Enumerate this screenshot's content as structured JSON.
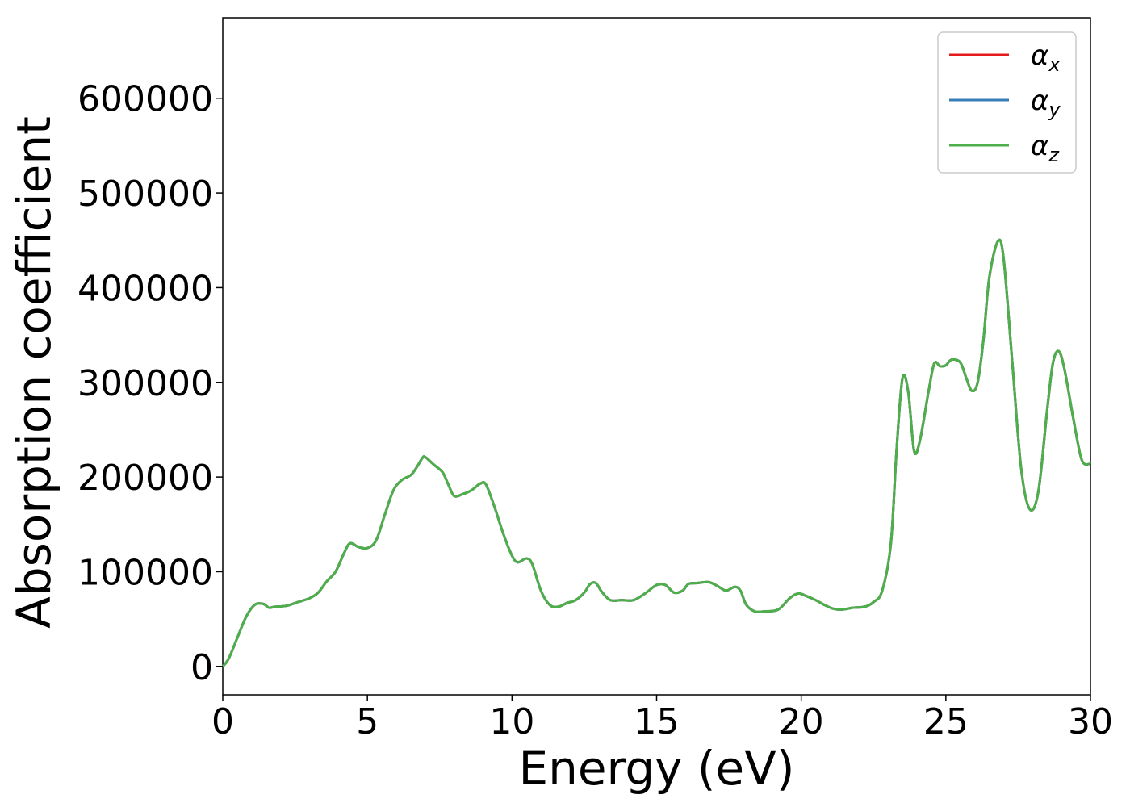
{
  "chart_data": {
    "type": "line",
    "title": "",
    "xlabel": "Energy (eV)",
    "ylabel": "Absorption coefficient",
    "xlim": [
      0,
      30
    ],
    "ylim": [
      -30000,
      685000
    ],
    "xticks": [
      0,
      5,
      10,
      15,
      20,
      25,
      30
    ],
    "xtick_labels": [
      "0",
      "5",
      "10",
      "15",
      "20",
      "25",
      "30"
    ],
    "yticks": [
      0,
      100000,
      200000,
      300000,
      400000,
      500000,
      600000
    ],
    "ytick_labels": [
      "0",
      "100000",
      "200000",
      "300000",
      "400000",
      "500000",
      "600000"
    ],
    "grid": false,
    "legend_position": "top-right",
    "x": [
      0,
      0.2,
      0.5,
      0.8,
      1.1,
      1.4,
      1.6,
      1.8,
      2.2,
      2.6,
      3.0,
      3.3,
      3.6,
      3.9,
      4.2,
      4.4,
      4.7,
      5.0,
      5.3,
      5.6,
      5.9,
      6.2,
      6.5,
      6.7,
      6.9,
      7.0,
      7.3,
      7.6,
      7.8,
      8.0,
      8.3,
      8.6,
      8.9,
      9.1,
      9.4,
      9.7,
      10.0,
      10.2,
      10.5,
      10.7,
      11.0,
      11.3,
      11.6,
      11.9,
      12.2,
      12.5,
      12.7,
      12.9,
      13.1,
      13.4,
      13.8,
      14.2,
      14.6,
      15.0,
      15.3,
      15.6,
      15.9,
      16.1,
      16.4,
      16.8,
      17.1,
      17.4,
      17.7,
      17.9,
      18.1,
      18.4,
      18.7,
      19.2,
      19.6,
      19.9,
      20.2,
      20.5,
      20.8,
      21.1,
      21.4,
      21.8,
      22.2,
      22.5,
      22.8,
      23.1,
      23.3,
      23.5,
      23.7,
      23.9,
      24.1,
      24.4,
      24.6,
      24.8,
      25.0,
      25.2,
      25.5,
      25.7,
      25.9,
      26.1,
      26.3,
      26.5,
      26.8,
      27.0,
      27.3,
      27.6,
      27.9,
      28.2,
      28.5,
      28.7,
      28.9,
      29.1,
      29.4,
      29.7,
      30.0
    ],
    "series": [
      {
        "name": "α_x",
        "label_main": "α",
        "label_sub": "x",
        "color": "#e41a1c",
        "values": [
          0,
          8000,
          30000,
          52000,
          65000,
          66000,
          62000,
          63000,
          64000,
          68000,
          72000,
          78000,
          90000,
          100000,
          120000,
          130000,
          126000,
          125000,
          133000,
          160000,
          186000,
          197000,
          202000,
          210000,
          220000,
          221000,
          213000,
          205000,
          192000,
          180000,
          182000,
          186000,
          193000,
          192000,
          168000,
          140000,
          117000,
          110000,
          114000,
          108000,
          80000,
          65000,
          63000,
          67000,
          70000,
          78000,
          87000,
          88000,
          79000,
          70000,
          70000,
          70000,
          77000,
          86000,
          86000,
          78000,
          80000,
          87000,
          88000,
          89000,
          85000,
          80000,
          84000,
          80000,
          65000,
          58000,
          58000,
          60000,
          72000,
          77000,
          74000,
          70000,
          65000,
          61000,
          60000,
          62000,
          63000,
          68000,
          80000,
          130000,
          230000,
          304000,
          290000,
          228000,
          238000,
          290000,
          320000,
          317000,
          318000,
          324000,
          321000,
          305000,
          291000,
          300000,
          345000,
          410000,
          449000,
          430000,
          320000,
          210000,
          166000,
          185000,
          270000,
          320000,
          333000,
          314000,
          263000,
          218000,
          214000
        ]
      },
      {
        "name": "α_y",
        "label_main": "α",
        "label_sub": "y",
        "color": "#377eb8",
        "values": [
          0,
          8000,
          30000,
          52000,
          65000,
          66000,
          62000,
          63000,
          64000,
          68000,
          72000,
          78000,
          90000,
          100000,
          120000,
          130000,
          126000,
          125000,
          133000,
          160000,
          186000,
          197000,
          202000,
          210000,
          220000,
          221000,
          213000,
          205000,
          192000,
          180000,
          182000,
          186000,
          193000,
          192000,
          168000,
          140000,
          117000,
          110000,
          114000,
          108000,
          80000,
          65000,
          63000,
          67000,
          70000,
          78000,
          87000,
          88000,
          79000,
          70000,
          70000,
          70000,
          77000,
          86000,
          86000,
          78000,
          80000,
          87000,
          88000,
          89000,
          85000,
          80000,
          84000,
          80000,
          65000,
          58000,
          58000,
          60000,
          72000,
          77000,
          74000,
          70000,
          65000,
          61000,
          60000,
          62000,
          63000,
          68000,
          80000,
          130000,
          230000,
          304000,
          290000,
          228000,
          238000,
          290000,
          320000,
          317000,
          318000,
          324000,
          321000,
          305000,
          291000,
          300000,
          345000,
          410000,
          449000,
          430000,
          320000,
          210000,
          166000,
          185000,
          270000,
          320000,
          333000,
          314000,
          263000,
          218000,
          214000
        ]
      },
      {
        "name": "α_z",
        "label_main": "α",
        "label_sub": "z",
        "color": "#4daf4a",
        "values": [
          0,
          8000,
          30000,
          52000,
          65000,
          66000,
          62000,
          63000,
          64000,
          68000,
          72000,
          78000,
          90000,
          100000,
          120000,
          130000,
          126000,
          125000,
          133000,
          160000,
          186000,
          197000,
          202000,
          210000,
          220000,
          221000,
          213000,
          205000,
          192000,
          180000,
          182000,
          186000,
          193000,
          192000,
          168000,
          140000,
          117000,
          110000,
          114000,
          108000,
          80000,
          65000,
          63000,
          67000,
          70000,
          78000,
          87000,
          88000,
          79000,
          70000,
          70000,
          70000,
          77000,
          86000,
          86000,
          78000,
          80000,
          87000,
          88000,
          89000,
          85000,
          80000,
          84000,
          80000,
          65000,
          58000,
          58000,
          60000,
          72000,
          77000,
          74000,
          70000,
          65000,
          61000,
          60000,
          62000,
          63000,
          68000,
          80000,
          130000,
          230000,
          304000,
          290000,
          228000,
          238000,
          290000,
          320000,
          317000,
          318000,
          324000,
          321000,
          305000,
          291000,
          300000,
          345000,
          410000,
          449000,
          430000,
          320000,
          210000,
          166000,
          185000,
          270000,
          320000,
          333000,
          314000,
          263000,
          218000,
          214000
        ]
      }
    ]
  }
}
